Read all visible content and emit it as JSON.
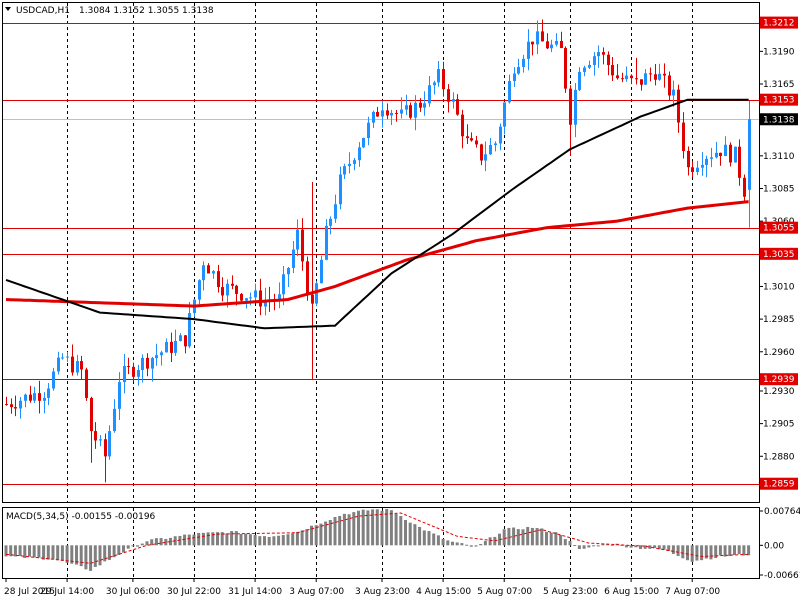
{
  "window": {
    "symbol_title": "USDCAD,H1",
    "ohlc_text": "1.3084 1.3152 1.3055 1.3138",
    "menu_icon": "triangle-down-icon"
  },
  "macd": {
    "label": "MACD(5,34,5) -0.00155 -0.00196",
    "scale_labels": [
      "0.00764",
      "0.00",
      "-0.00661"
    ],
    "scale_values": [
      0.00764,
      0.0,
      -0.00661
    ]
  },
  "colors": {
    "background": "#ffffff",
    "bull_candle": "#1e90ff",
    "bear_candle": "#e00000",
    "level_line": "#e00000",
    "ma_slow": "#e00000",
    "ma_fast": "#000000",
    "macd_hist": "#808080",
    "macd_signal": "#e00000",
    "current_price_bg": "#000000"
  },
  "chart_data": {
    "type": "candlestick",
    "title": "USDCAD,H1",
    "ylim": [
      1.2845,
      1.3227
    ],
    "price_ticks": [
      "1.3190",
      "1.3165",
      "1.3110",
      "1.3085",
      "1.3060",
      "1.3010",
      "1.2985",
      "1.2960",
      "1.2930",
      "1.2905",
      "1.2880"
    ],
    "price_tick_values": [
      1.319,
      1.3165,
      1.311,
      1.3085,
      1.306,
      1.301,
      1.2985,
      1.296,
      1.293,
      1.2905,
      1.288
    ],
    "horizontal_levels": [
      {
        "label": "1.3212",
        "value": 1.3212
      },
      {
        "label": "1.3153",
        "value": 1.3153
      },
      {
        "label": "1.3055",
        "value": 1.3055
      },
      {
        "label": "1.3035",
        "value": 1.3035
      },
      {
        "label": "1.2939",
        "value": 1.2939
      },
      {
        "label": "1.2859",
        "value": 1.2859
      }
    ],
    "current_price": {
      "label": "1.3138",
      "value": 1.3138
    },
    "time_labels": [
      "28 Jul 2015",
      "29 Jul 14:00",
      "30 Jul 06:00",
      "30 Jul 22:00",
      "31 Jul 14:00",
      "3 Aug 07:00",
      "3 Aug 23:00",
      "4 Aug 15:00",
      "5 Aug 07:00",
      "5 Aug 23:00",
      "6 Aug 15:00",
      "7 Aug 07:00"
    ],
    "bar_count": 160,
    "close_anchors": [
      [
        0,
        1.292
      ],
      [
        8,
        1.293
      ],
      [
        12,
        1.2955
      ],
      [
        16,
        1.2945
      ],
      [
        18,
        1.29
      ],
      [
        21,
        1.288
      ],
      [
        24,
        1.294
      ],
      [
        28,
        1.295
      ],
      [
        33,
        1.296
      ],
      [
        38,
        1.297
      ],
      [
        42,
        1.303
      ],
      [
        46,
        1.301
      ],
      [
        50,
        1.3005
      ],
      [
        54,
        1.3
      ],
      [
        58,
        1.3
      ],
      [
        62,
        1.305
      ],
      [
        65,
        1.299
      ],
      [
        68,
        1.305
      ],
      [
        71,
        1.309
      ],
      [
        75,
        1.312
      ],
      [
        80,
        1.315
      ],
      [
        84,
        1.314
      ],
      [
        88,
        1.315
      ],
      [
        92,
        1.317
      ],
      [
        95,
        1.315
      ],
      [
        98,
        1.312
      ],
      [
        101,
        1.311
      ],
      [
        104,
        1.312
      ],
      [
        108,
        1.318
      ],
      [
        112,
        1.32
      ],
      [
        115,
        1.3195
      ],
      [
        118,
        1.319
      ],
      [
        120,
        1.314
      ],
      [
        122,
        1.318
      ],
      [
        126,
        1.319
      ],
      [
        130,
        1.317
      ],
      [
        134,
        1.3165
      ],
      [
        138,
        1.3175
      ],
      [
        142,
        1.3155
      ],
      [
        145,
        1.31
      ],
      [
        148,
        1.311
      ],
      [
        152,
        1.3115
      ],
      [
        155,
        1.311
      ],
      [
        157,
        1.3084
      ],
      [
        158,
        1.3138
      ]
    ],
    "spikes": [
      {
        "bar": 18,
        "low": 1.2875
      },
      {
        "bar": 21,
        "low": 1.286
      },
      {
        "bar": 65,
        "high": 1.309,
        "low": 1.2939
      },
      {
        "bar": 106,
        "high": 1.315
      },
      {
        "bar": 120,
        "low": 1.311
      },
      {
        "bar": 134,
        "high": 1.3185
      }
    ],
    "slow_ma": [
      [
        0,
        1.3
      ],
      [
        40,
        1.2995
      ],
      [
        60,
        1.3
      ],
      [
        70,
        1.301
      ],
      [
        85,
        1.303
      ],
      [
        100,
        1.3045
      ],
      [
        115,
        1.3055
      ],
      [
        130,
        1.306
      ],
      [
        145,
        1.307
      ],
      [
        158,
        1.3075
      ]
    ],
    "fast_ma": [
      [
        0,
        1.3015
      ],
      [
        20,
        1.299
      ],
      [
        40,
        1.2985
      ],
      [
        55,
        1.2978
      ],
      [
        70,
        1.298
      ],
      [
        82,
        1.302
      ],
      [
        95,
        1.305
      ],
      [
        108,
        1.3085
      ],
      [
        120,
        1.3115
      ],
      [
        135,
        1.314
      ],
      [
        145,
        1.3153
      ],
      [
        158,
        1.3153
      ]
    ],
    "macd_hist": [
      [
        0,
        -0.0025
      ],
      [
        10,
        -0.003
      ],
      [
        18,
        -0.0055
      ],
      [
        24,
        -0.002
      ],
      [
        30,
        0.001
      ],
      [
        40,
        0.0025
      ],
      [
        48,
        0.003
      ],
      [
        56,
        0.002
      ],
      [
        62,
        0.003
      ],
      [
        68,
        0.0055
      ],
      [
        72,
        0.007
      ],
      [
        78,
        0.008
      ],
      [
        82,
        0.0078
      ],
      [
        88,
        0.004
      ],
      [
        94,
        0.001
      ],
      [
        100,
        -0.0005
      ],
      [
        106,
        0.0035
      ],
      [
        112,
        0.004
      ],
      [
        118,
        0.0025
      ],
      [
        122,
        -0.001
      ],
      [
        128,
        0.0005
      ],
      [
        134,
        -0.0005
      ],
      [
        140,
        -0.001
      ],
      [
        146,
        -0.0035
      ],
      [
        152,
        -0.0025
      ],
      [
        158,
        -0.002
      ]
    ],
    "macd_signal": [
      [
        0,
        -0.002
      ],
      [
        18,
        -0.004
      ],
      [
        30,
        0.0
      ],
      [
        45,
        0.0025
      ],
      [
        62,
        0.0028
      ],
      [
        75,
        0.0065
      ],
      [
        84,
        0.0072
      ],
      [
        96,
        0.002
      ],
      [
        104,
        0.001
      ],
      [
        114,
        0.0035
      ],
      [
        124,
        0.0005
      ],
      [
        136,
        -0.0002
      ],
      [
        148,
        -0.0025
      ],
      [
        158,
        -0.002
      ]
    ]
  }
}
